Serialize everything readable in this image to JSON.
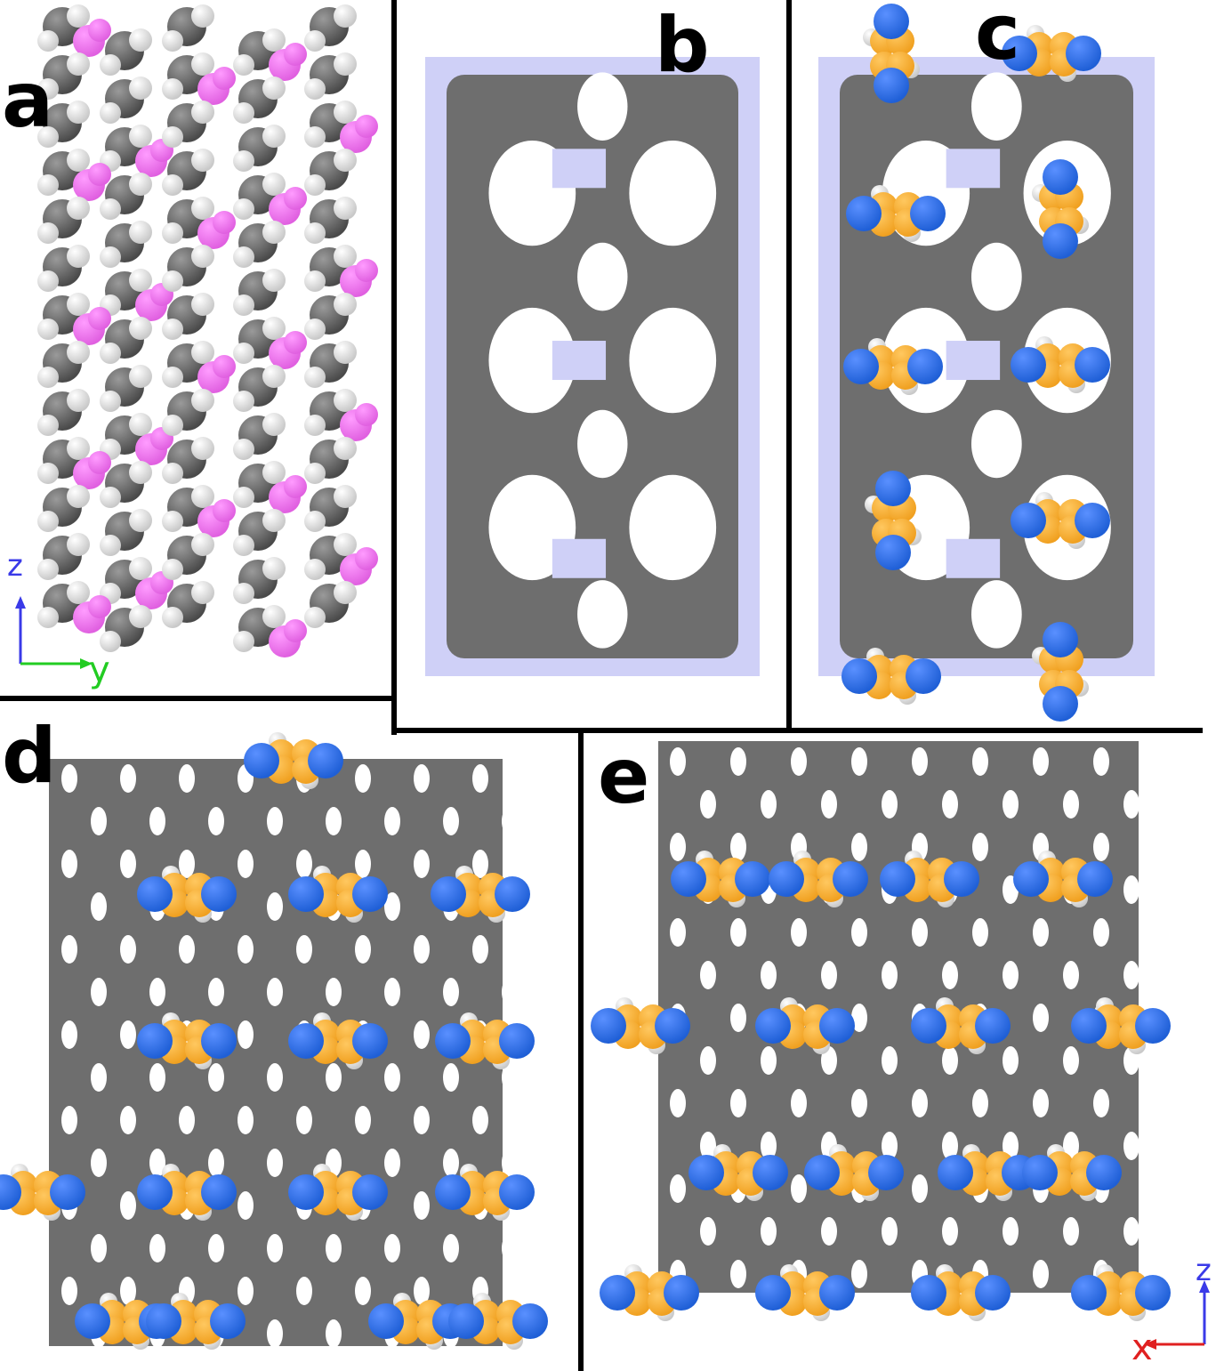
{
  "panels": {
    "a": {
      "label": "a",
      "axes": {
        "vertical": "z",
        "horizontal": "y"
      }
    },
    "b": {
      "label": "b"
    },
    "c": {
      "label": "c"
    },
    "d": {
      "label": "d"
    },
    "e": {
      "label": "e",
      "axes": {
        "vertical": "z",
        "horizontal": "x"
      }
    }
  },
  "colors": {
    "framework_surface": "#6e6e6e",
    "pore_section": "#cfd0f7",
    "nitrogen": "#1f5fd6",
    "carbon_guest": "#f0a020",
    "hydrogen": "#f2f2f2",
    "carbon_framework": "#6b6b6b",
    "fluorine": "#e060e0",
    "axis_z": "#3a3ae8",
    "axis_y": "#22cc22",
    "axis_x": "#e02020"
  }
}
